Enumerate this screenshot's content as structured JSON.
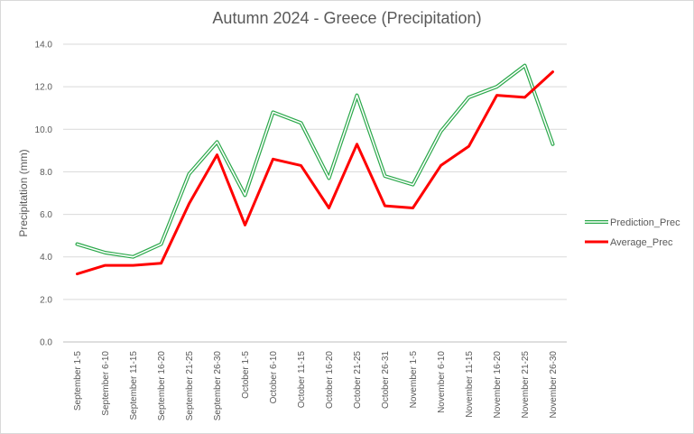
{
  "chart_data": {
    "type": "line",
    "title": "Autumn 2024 - Greece (Precipitation)",
    "xlabel": "",
    "ylabel": "Precipitation (mm)",
    "ylim": [
      0,
      14
    ],
    "yticks": [
      "0.0",
      "2.0",
      "4.0",
      "6.0",
      "8.0",
      "10.0",
      "12.0",
      "14.0"
    ],
    "grid": true,
    "legend_position": "right",
    "categories": [
      "September 1-5",
      "September 6-10",
      "September 11-15",
      "September 16-20",
      "September 21-25",
      "September 26-30",
      "October 1-5",
      "October 6-10",
      "October 11-15",
      "October 16-20",
      "October 21-25",
      "October 26-31",
      "November 1-5",
      "November 6-10",
      "November 11-15",
      "November 16-20",
      "November 21-25",
      "November 26-30"
    ],
    "series": [
      {
        "name": "Prediction_Prec",
        "color": "#2aa84a",
        "style": "double",
        "values": [
          4.6,
          4.2,
          4.0,
          4.6,
          7.9,
          9.4,
          6.9,
          10.8,
          10.3,
          7.7,
          11.6,
          7.8,
          7.4,
          9.9,
          11.5,
          12.0,
          13.0,
          9.3
        ]
      },
      {
        "name": "Average_Prec",
        "color": "#ff0000",
        "style": "solid",
        "values": [
          3.2,
          3.6,
          3.6,
          3.7,
          6.5,
          8.8,
          5.5,
          8.6,
          8.3,
          6.3,
          9.3,
          6.4,
          6.3,
          8.3,
          9.2,
          11.6,
          11.5,
          12.7
        ]
      }
    ]
  }
}
